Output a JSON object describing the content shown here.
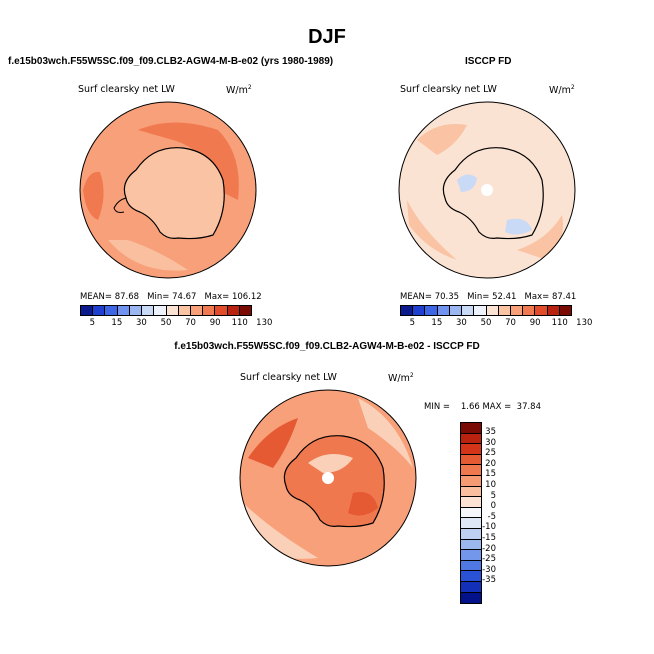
{
  "title": "DJF",
  "panels": [
    {
      "id": "model",
      "heading": "f.e15b03wch.F55W5SC.f09_f09.CLB2-AGW4-M-B-e02 (yrs 1980-1989)",
      "variable": "Surf clearsky net LW",
      "units": "W/m",
      "units_exp": "2",
      "stats": {
        "mean_label": "MEAN=",
        "mean": "87.68",
        "min_label": "Min=",
        "min": "74.67",
        "max_label": "Max=",
        "max": "106.12"
      }
    },
    {
      "id": "obs",
      "heading": "ISCCP FD",
      "variable": "Surf clearsky net LW",
      "units": "W/m",
      "units_exp": "2",
      "stats": {
        "mean_label": "MEAN=",
        "mean": "70.35",
        "min_label": "Min=",
        "min": "52.41",
        "max_label": "Max=",
        "max": "87.41"
      }
    },
    {
      "id": "diff",
      "heading": "f.e15b03wch.F55W5SC.f09_f09.CLB2-AGW4-M-B-e02 - ISCCP FD",
      "variable": "Surf clearsky net LW",
      "units": "W/m",
      "units_exp": "2",
      "stats_text": "MIN =    1.66 MAX =  37.84"
    }
  ],
  "abs_colorbar": {
    "colors": [
      "#0b1a8c",
      "#1f3fd1",
      "#3d66e6",
      "#6f93ee",
      "#9bb7f2",
      "#c9daf6",
      "#eef3fb",
      "#fbe3d3",
      "#f9c3a4",
      "#f7a079",
      "#f1794f",
      "#e24c2b",
      "#b8220f",
      "#7a0a04"
    ],
    "ticks": [
      "5",
      "15",
      "30",
      "50",
      "70",
      "90",
      "110",
      "130"
    ]
  },
  "diff_colorbar": {
    "colors": [
      "#7a0a04",
      "#b8220f",
      "#d4351a",
      "#e55a33",
      "#f0784f",
      "#f69a73",
      "#f9bf9f",
      "#fde3d3",
      "#f6f7fb",
      "#dfe8f7",
      "#bfd1f2",
      "#9ab7ee",
      "#7397ea",
      "#4f78e3",
      "#2a52d6",
      "#1230b8",
      "#03128a"
    ],
    "ticks": [
      "35",
      "30",
      "25",
      "20",
      "15",
      "10",
      "5",
      "0",
      "-5",
      "-10",
      "-15",
      "-20",
      "-25",
      "-30",
      "-35"
    ]
  },
  "map_colors": {
    "model_ocean": "#f7a079",
    "model_light": "#f9bf9f",
    "model_land": "#f9c3a4",
    "model_dark": "#f1794f",
    "obs_ocean": "#fbe3d3",
    "obs_light": "#f9c3a4",
    "obs_blue": "#c9daf6",
    "diff_ocean": "#f7a079",
    "diff_land": "#f0784f",
    "diff_light": "#fbd0b8",
    "diff_dark": "#e55a33"
  }
}
